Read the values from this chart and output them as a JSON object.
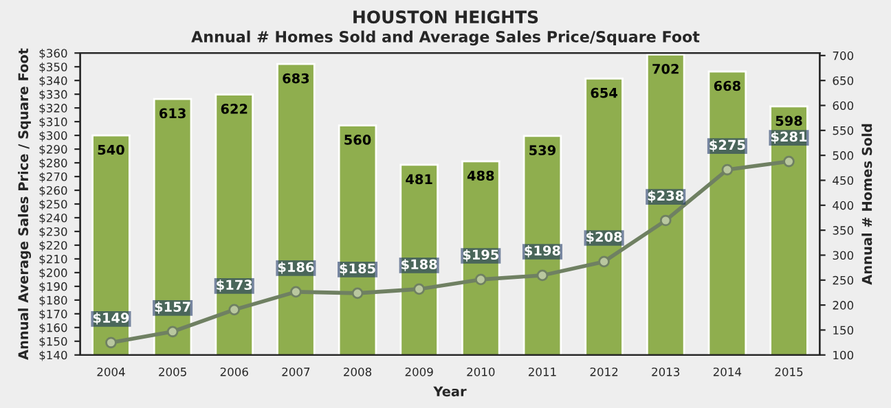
{
  "chart_data": {
    "type": "bar",
    "title": "HOUSTON HEIGHTS",
    "subtitle": "Annual # Homes Sold and Average Sales Price/Square Foot",
    "xlabel": "Year",
    "ylabel": "Annual Average Sales Price / Square Foot",
    "y2label": "Annual # Homes Sold",
    "categories": [
      "2004",
      "2005",
      "2006",
      "2007",
      "2008",
      "2009",
      "2010",
      "2011",
      "2012",
      "2013",
      "2014",
      "2015"
    ],
    "series": [
      {
        "axis": "y2",
        "color": "#8fae4e",
        "values": [
          540,
          613,
          622,
          683,
          560,
          481,
          488,
          539,
          654,
          702,
          668,
          598
        ],
        "value_labels": [
          "540",
          "613",
          "622",
          "683",
          "560",
          "481",
          "488",
          "539",
          "654",
          "702",
          "668",
          "598"
        ]
      },
      {
        "type": "line",
        "axis": "y",
        "color": "#6f8062",
        "marker": "circle",
        "values": [
          149,
          157,
          173,
          186,
          185,
          188,
          195,
          198,
          208,
          238,
          275,
          281
        ],
        "value_labels": [
          "$149",
          "$157",
          "$173",
          "$186",
          "$185",
          "$188",
          "$195",
          "$198",
          "$208",
          "$238",
          "$275",
          "$281"
        ]
      }
    ],
    "ylim": [
      140,
      360
    ],
    "yticks": [
      {
        "value": 140,
        "label": "$140"
      },
      {
        "value": 150,
        "label": "$150"
      },
      {
        "value": 160,
        "label": "$160"
      },
      {
        "value": 170,
        "label": "$170"
      },
      {
        "value": 180,
        "label": "$180"
      },
      {
        "value": 190,
        "label": "$190"
      },
      {
        "value": 200,
        "label": "$200"
      },
      {
        "value": 210,
        "label": "$210"
      },
      {
        "value": 220,
        "label": "$220"
      },
      {
        "value": 230,
        "label": "$230"
      },
      {
        "value": 240,
        "label": "$240"
      },
      {
        "value": 250,
        "label": "$250"
      },
      {
        "value": 260,
        "label": "$260"
      },
      {
        "value": 270,
        "label": "$270"
      },
      {
        "value": 280,
        "label": "$280"
      },
      {
        "value": 290,
        "label": "$290"
      },
      {
        "value": 300,
        "label": "$300"
      },
      {
        "value": 310,
        "label": "$310"
      },
      {
        "value": 320,
        "label": "$320"
      },
      {
        "value": 330,
        "label": "$330"
      },
      {
        "value": 340,
        "label": "$340"
      },
      {
        "value": 350,
        "label": "$350"
      },
      {
        "value": 360,
        "label": "$360"
      }
    ],
    "y2lim": [
      100,
      705
    ],
    "y2ticks": [
      100,
      150,
      200,
      250,
      300,
      350,
      400,
      450,
      500,
      550,
      600,
      650,
      700
    ],
    "grid": false,
    "legend": false
  }
}
